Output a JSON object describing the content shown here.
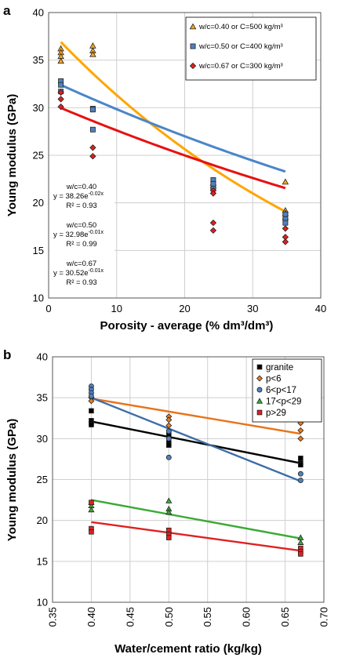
{
  "chart_data": [
    {
      "panel": "a",
      "type": "scatter",
      "xlabel": "Porosity - average (% dm³/dm³)",
      "ylabel": "Young modulus (GPa)",
      "xlim": [
        0,
        40
      ],
      "ylim": [
        10,
        40
      ],
      "xticks": [
        "0",
        "10",
        "20",
        "30",
        "40"
      ],
      "yticks": [
        "10",
        "15",
        "20",
        "25",
        "30",
        "35",
        "40"
      ],
      "grid": true,
      "legend_placement": "top-right",
      "series": [
        {
          "name": "w/c=0.40 or C=500 kg/m³",
          "marker": "triangle",
          "color": "#f5a623",
          "line_color": "#ffa500",
          "points": [
            [
              1.8,
              36.2
            ],
            [
              1.8,
              35.8
            ],
            [
              1.8,
              35.4
            ],
            [
              1.8,
              34.9
            ],
            [
              6.5,
              36.5
            ],
            [
              6.5,
              36.0
            ],
            [
              6.5,
              35.6
            ],
            [
              24.2,
              22.1
            ],
            [
              24.2,
              21.8
            ],
            [
              34.8,
              22.2
            ],
            [
              34.8,
              19.2
            ],
            [
              34.8,
              18.9
            ],
            [
              34.8,
              18.5
            ]
          ],
          "fit": {
            "a": 38.26,
            "b": -0.02
          }
        },
        {
          "name": "w/c=0.50 or C=400 kg/m³",
          "marker": "square",
          "color": "#4f81bd",
          "line_color": "#4a86c8",
          "points": [
            [
              1.8,
              32.8
            ],
            [
              1.8,
              32.4
            ],
            [
              1.8,
              31.7
            ],
            [
              6.5,
              29.9
            ],
            [
              6.5,
              29.8
            ],
            [
              6.5,
              27.7
            ],
            [
              24.2,
              22.4
            ],
            [
              24.2,
              22.0
            ],
            [
              24.2,
              21.5
            ],
            [
              34.8,
              18.8
            ],
            [
              34.8,
              18.3
            ],
            [
              34.8,
              17.9
            ]
          ],
          "fit": {
            "a": 32.98,
            "b": -0.01
          }
        },
        {
          "name": "w/c=0.67 or C=300 kg/m³",
          "marker": "diamond",
          "color": "#e02020",
          "line_color": "#e81010",
          "points": [
            [
              1.8,
              31.6
            ],
            [
              1.8,
              30.9
            ],
            [
              1.8,
              30.1
            ],
            [
              6.5,
              25.8
            ],
            [
              6.5,
              24.9
            ],
            [
              24.2,
              21.3
            ],
            [
              24.2,
              21.0
            ],
            [
              24.2,
              17.9
            ],
            [
              24.2,
              17.1
            ],
            [
              34.8,
              17.3
            ],
            [
              34.8,
              16.4
            ],
            [
              34.8,
              15.9
            ]
          ],
          "fit": {
            "a": 30.52,
            "b": -0.01
          }
        }
      ],
      "annotations": [
        {
          "lines": [
            "w/c=0.40",
            "y = 38.26e",
            "R² = 0.93"
          ],
          "exp": "-0.02x"
        },
        {
          "lines": [
            "w/c=0.50",
            "y = 32.98e",
            "R² = 0.99"
          ],
          "exp": "-0.01x"
        },
        {
          "lines": [
            "w/c=0.67",
            "y = 30.52e",
            "R² = 0.93"
          ],
          "exp": "-0.01x"
        }
      ]
    },
    {
      "panel": "b",
      "type": "scatter",
      "xlabel": "Water/cement ratio (kg/kg)",
      "ylabel": "Young modulus (GPa)",
      "xlim": [
        0.35,
        0.7
      ],
      "ylim": [
        10,
        40
      ],
      "xticks": [
        "0.35",
        "0.40",
        "0.45",
        "0.50",
        "0.55",
        "0.60",
        "0.65",
        "0.70"
      ],
      "yticks": [
        "10",
        "15",
        "20",
        "25",
        "30",
        "35",
        "40"
      ],
      "grid": true,
      "legend_placement": "top-right",
      "series": [
        {
          "name": "granite",
          "marker": "square",
          "color": "#000000",
          "line_color": "#000000",
          "points": [
            [
              0.4,
              33.4
            ],
            [
              0.4,
              32.2
            ],
            [
              0.4,
              31.9
            ],
            [
              0.4,
              31.7
            ],
            [
              0.5,
              30.8
            ],
            [
              0.5,
              30.3
            ],
            [
              0.5,
              29.5
            ],
            [
              0.5,
              29.2
            ],
            [
              0.67,
              27.6
            ],
            [
              0.67,
              27.0
            ],
            [
              0.67,
              26.8
            ]
          ],
          "trend": [
            [
              0.4,
              32.1
            ],
            [
              0.67,
              27.0
            ]
          ]
        },
        {
          "name": "p<6",
          "marker": "diamond",
          "color": "#e87d23",
          "line_color": "#e8731a",
          "points": [
            [
              0.4,
              35.0
            ],
            [
              0.4,
              34.6
            ],
            [
              0.5,
              32.7
            ],
            [
              0.5,
              32.3
            ],
            [
              0.5,
              31.6
            ],
            [
              0.67,
              31.9
            ],
            [
              0.67,
              31.0
            ],
            [
              0.67,
              30.0
            ]
          ],
          "trend": [
            [
              0.4,
              34.9
            ],
            [
              0.67,
              30.6
            ]
          ]
        },
        {
          "name": "6<p<17",
          "marker": "circle",
          "color": "#4f81bd",
          "line_color": "#3d6ea8",
          "points": [
            [
              0.4,
              36.4
            ],
            [
              0.4,
              36.0
            ],
            [
              0.4,
              35.6
            ],
            [
              0.4,
              35.2
            ],
            [
              0.5,
              30.9
            ],
            [
              0.5,
              30.0
            ],
            [
              0.5,
              27.7
            ],
            [
              0.67,
              25.7
            ],
            [
              0.67,
              24.9
            ]
          ],
          "trend": [
            [
              0.4,
              35.0
            ],
            [
              0.67,
              24.8
            ]
          ]
        },
        {
          "name": "17<p<29",
          "marker": "triangle",
          "color": "#3aaa35",
          "line_color": "#3aaa35",
          "points": [
            [
              0.4,
              22.2
            ],
            [
              0.4,
              21.8
            ],
            [
              0.4,
              21.3
            ],
            [
              0.5,
              22.4
            ],
            [
              0.5,
              21.4
            ],
            [
              0.5,
              21.0
            ],
            [
              0.67,
              17.9
            ],
            [
              0.67,
              17.3
            ]
          ],
          "trend": [
            [
              0.4,
              22.5
            ],
            [
              0.67,
              17.8
            ]
          ]
        },
        {
          "name": "p>29",
          "marker": "square",
          "color": "#e02020",
          "line_color": "#e02020",
          "points": [
            [
              0.4,
              22.2
            ],
            [
              0.4,
              19.0
            ],
            [
              0.4,
              18.6
            ],
            [
              0.5,
              18.8
            ],
            [
              0.5,
              18.3
            ],
            [
              0.5,
              17.9
            ],
            [
              0.67,
              16.6
            ],
            [
              0.67,
              16.2
            ],
            [
              0.67,
              15.9
            ]
          ],
          "trend": [
            [
              0.4,
              19.8
            ],
            [
              0.67,
              16.3
            ]
          ]
        }
      ]
    }
  ]
}
